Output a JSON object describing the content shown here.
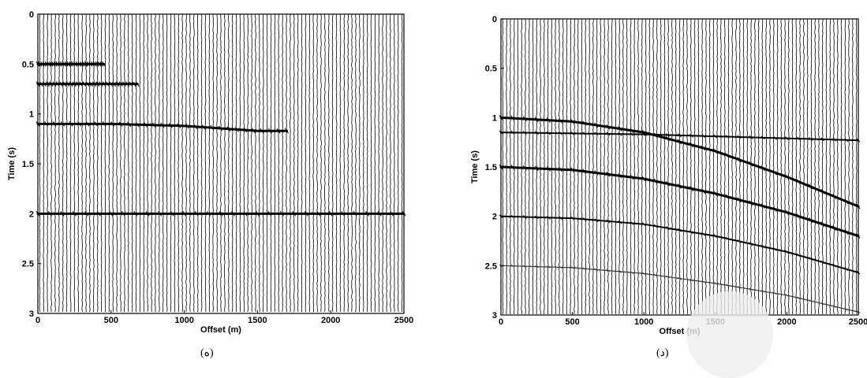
{
  "chart_data": [
    {
      "type": "line",
      "panel": "left",
      "caption": "(ه)",
      "xlabel": "Offset (m)",
      "ylabel": "Time (s)",
      "xlim": [
        0,
        2500
      ],
      "ylim": [
        0,
        3
      ],
      "y_reversed": true,
      "x_ticks": [
        "0",
        "500",
        "1000",
        "1500",
        "2000",
        "2500"
      ],
      "y_ticks": [
        "0",
        "0.5",
        "1",
        "1.5",
        "2",
        "2.5",
        "3"
      ],
      "trace_count": 95,
      "trace_color": "#000000",
      "events": [
        {
          "x": [
            0,
            450
          ],
          "y": [
            0.5,
            0.5
          ],
          "weight": "strong"
        },
        {
          "x": [
            0,
            680
          ],
          "y": [
            0.7,
            0.7
          ],
          "weight": "strong"
        },
        {
          "x": [
            0,
            500,
            1000,
            1500,
            1700
          ],
          "y": [
            1.1,
            1.1,
            1.12,
            1.17,
            1.17
          ],
          "weight": "strong"
        },
        {
          "x": [
            0,
            2500
          ],
          "y": [
            2.0,
            2.0
          ],
          "weight": "strong"
        }
      ]
    },
    {
      "type": "line",
      "panel": "right",
      "caption": "(د)",
      "xlabel": "Offset (m)",
      "ylabel": "Time (s)",
      "xlim": [
        0,
        2500
      ],
      "ylim": [
        0,
        3
      ],
      "y_reversed": true,
      "x_ticks": [
        "0",
        "500",
        "1000",
        "1500",
        "2000",
        "2500"
      ],
      "y_ticks": [
        "0",
        "0.5",
        "1",
        "1.5",
        "2",
        "2.5",
        "3"
      ],
      "trace_count": 95,
      "trace_color": "#000000",
      "events": [
        {
          "x": [
            0,
            500,
            1000,
            1500,
            2000,
            2500
          ],
          "y": [
            1.0,
            1.04,
            1.15,
            1.34,
            1.6,
            1.9
          ],
          "weight": "strong"
        },
        {
          "x": [
            0,
            500,
            1000,
            1500,
            2000,
            2500
          ],
          "y": [
            1.15,
            1.16,
            1.17,
            1.19,
            1.21,
            1.23
          ],
          "weight": "medium"
        },
        {
          "x": [
            0,
            500,
            1000,
            1500,
            2000,
            2500
          ],
          "y": [
            1.5,
            1.53,
            1.62,
            1.77,
            1.96,
            2.2
          ],
          "weight": "strong"
        },
        {
          "x": [
            0,
            500,
            1000,
            1500,
            2000,
            2500
          ],
          "y": [
            2.0,
            2.02,
            2.08,
            2.2,
            2.36,
            2.57
          ],
          "weight": "medium"
        },
        {
          "x": [
            0,
            500,
            1000,
            1500,
            2000,
            2500
          ],
          "y": [
            2.5,
            2.52,
            2.58,
            2.68,
            2.8,
            2.97
          ],
          "weight": "weak"
        }
      ]
    }
  ]
}
